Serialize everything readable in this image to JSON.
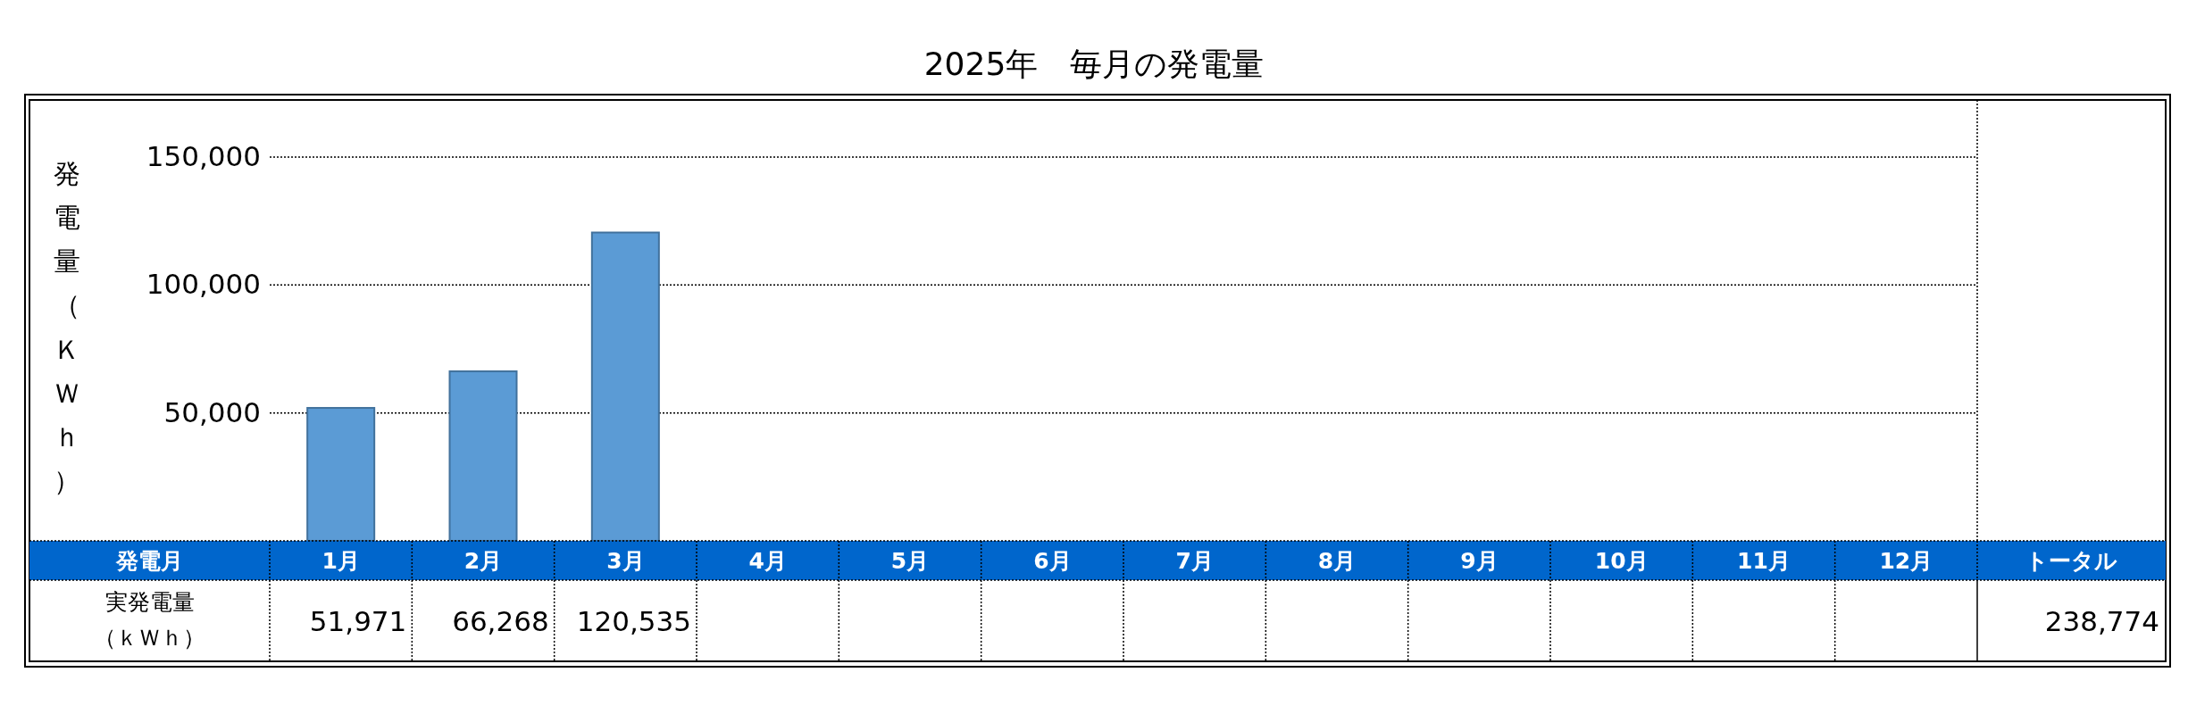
{
  "chart_data": {
    "type": "bar",
    "title": "2025年　毎月の発電量",
    "ylabel": "発電量（ＫＷｈ）",
    "categories": [
      "1月",
      "2月",
      "3月",
      "4月",
      "5月",
      "6月",
      "7月",
      "8月",
      "9月",
      "10月",
      "11月",
      "12月"
    ],
    "values": [
      51971,
      66268,
      120535,
      null,
      null,
      null,
      null,
      null,
      null,
      null,
      null,
      null
    ],
    "color": "#5b9bd5",
    "ylim": [
      0,
      172000
    ],
    "yticks": [
      {
        "value": 50000,
        "label": "50,000"
      },
      {
        "value": 100000,
        "label": "100,000"
      },
      {
        "value": 150000,
        "label": "150,000"
      }
    ],
    "grid": "y",
    "value_labels": [
      "51,971",
      "66,268",
      "120,535",
      null,
      null,
      null,
      null,
      null,
      null,
      null,
      null,
      null
    ],
    "annotations": [
      "発電月",
      "実発電量（ｋＷｈ）",
      "トータル",
      "238,774"
    ]
  }
}
